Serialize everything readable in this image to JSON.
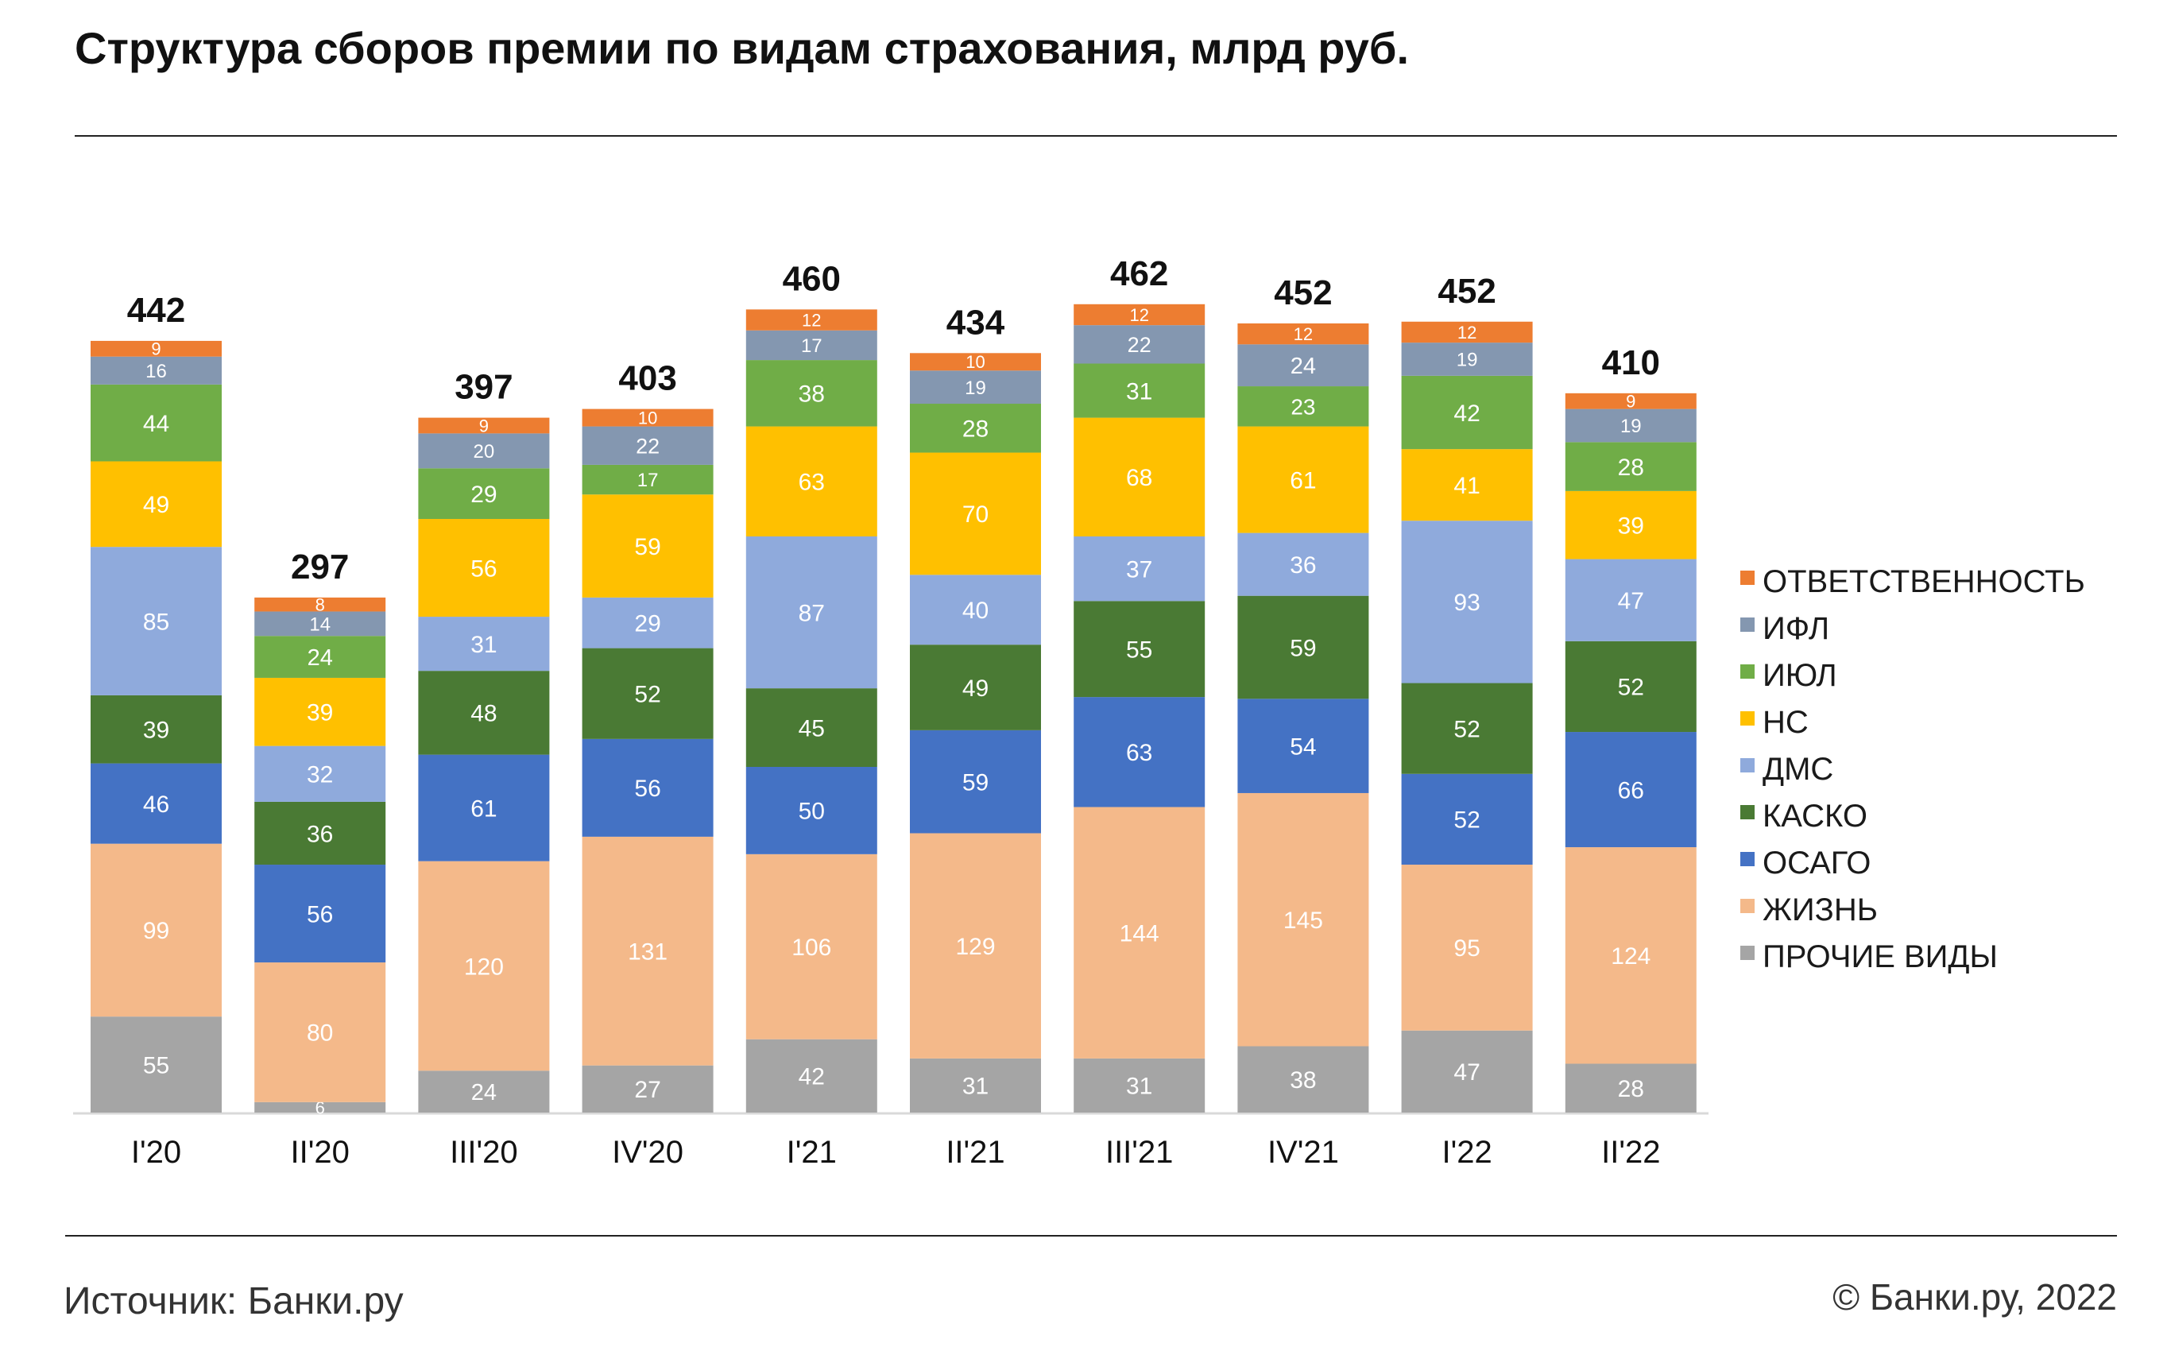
{
  "header": {
    "title": "Структура сборов премии по видам страхования, млрд руб."
  },
  "footer": {
    "source": "Источник: Банки.ру",
    "copyright": "© Банки.ру, 2022"
  },
  "colors": {
    "ПРОЧИЕ ВИДЫ": "#a5a5a5",
    "ЖИЗНЬ": "#f4b98a",
    "ОСАГО": "#4472c4",
    "КАСКО": "#4a7a34",
    "ДМС": "#8faadc",
    "НС": "#ffc000",
    "ИЮЛ": "#70ad47",
    "ИФЛ": "#8497b0",
    "ОТВЕТСТВЕННОСТЬ": "#ed7d31"
  },
  "chart_data": {
    "type": "bar",
    "stacked": true,
    "title": "Структура сборов премии по видам страхования, млрд руб.",
    "categories": [
      "I'20",
      "II'20",
      "III'20",
      "IV'20",
      "I'21",
      "II'21",
      "III'21",
      "IV'21",
      "I'22",
      "II'22"
    ],
    "totals": [
      442,
      297,
      397,
      403,
      460,
      434,
      462,
      452,
      452,
      410
    ],
    "series": [
      {
        "name": "ПРОЧИЕ ВИДЫ",
        "values": [
          55,
          6,
          24,
          27,
          42,
          31,
          31,
          38,
          47,
          28
        ]
      },
      {
        "name": "ЖИЗНЬ",
        "values": [
          99,
          80,
          120,
          131,
          106,
          129,
          144,
          145,
          95,
          124
        ]
      },
      {
        "name": "ОСАГО",
        "values": [
          46,
          56,
          61,
          56,
          50,
          59,
          63,
          54,
          52,
          66
        ]
      },
      {
        "name": "КАСКО",
        "values": [
          39,
          36,
          48,
          52,
          45,
          49,
          55,
          59,
          52,
          52
        ]
      },
      {
        "name": "ДМС",
        "values": [
          85,
          32,
          31,
          29,
          87,
          40,
          37,
          36,
          93,
          47
        ]
      },
      {
        "name": "НС",
        "values": [
          49,
          39,
          56,
          59,
          63,
          70,
          68,
          61,
          41,
          39
        ]
      },
      {
        "name": "ИЮЛ",
        "values": [
          44,
          24,
          29,
          17,
          38,
          28,
          31,
          23,
          42,
          28
        ]
      },
      {
        "name": "ИФЛ",
        "values": [
          16,
          14,
          20,
          22,
          17,
          19,
          22,
          24,
          19,
          19
        ]
      },
      {
        "name": "ОТВЕТСТВЕННОСТЬ",
        "values": [
          9,
          8,
          9,
          10,
          12,
          10,
          12,
          12,
          12,
          9
        ]
      }
    ],
    "legend_order": [
      "ОТВЕТСТВЕННОСТЬ",
      "ИФЛ",
      "ИЮЛ",
      "НС",
      "ДМС",
      "КАСКО",
      "ОСАГО",
      "ЖИЗНЬ",
      "ПРОЧИЕ ВИДЫ"
    ],
    "legend_position": "right",
    "ylim": [
      0,
      470
    ],
    "grid": false
  }
}
